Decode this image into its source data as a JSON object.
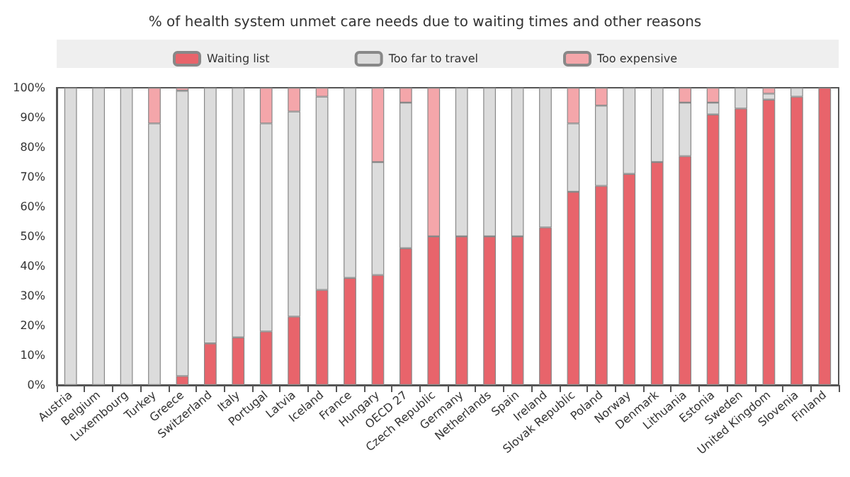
{
  "chart_data": {
    "type": "bar",
    "stacked": true,
    "title": "% of health system unmet care needs due to waiting times and other reasons",
    "categories": [
      "Austria",
      "Belgium",
      "Luxembourg",
      "Turkey",
      "Greece",
      "Switzerland",
      "Italy",
      "Portugal",
      "Latvia",
      "Iceland",
      "France",
      "Hungary",
      "OECD 27",
      "Czech Republic",
      "Germany",
      "Netherlands",
      "Spain",
      "Ireland",
      "Slovak Republic",
      "Poland",
      "Norway",
      "Denmark",
      "Lithuania",
      "Estonia",
      "Sweden",
      "United Kingdom",
      "Slovenia",
      "Finland"
    ],
    "series": [
      {
        "name": "Waiting list",
        "color": "#e8646b",
        "values": [
          0,
          0,
          0,
          0,
          3,
          14,
          16,
          18,
          23,
          32,
          36,
          37,
          46,
          50,
          50,
          50,
          50,
          53,
          65,
          67,
          71,
          75,
          77,
          91,
          93,
          96,
          97,
          100
        ]
      },
      {
        "name": "Too far to travel",
        "color": "#dcdcdc",
        "values": [
          100,
          100,
          100,
          88,
          96,
          86,
          84,
          70,
          69,
          65,
          64,
          38,
          49,
          0,
          50,
          50,
          50,
          47,
          23,
          27,
          29,
          25,
          18,
          4,
          7,
          2,
          3,
          0
        ]
      },
      {
        "name": "Too expensive",
        "color": "#f4a6aa",
        "values": [
          0,
          0,
          0,
          12,
          1,
          0,
          0,
          12,
          8,
          3,
          0,
          25,
          5,
          50,
          0,
          0,
          0,
          0,
          12,
          6,
          0,
          0,
          5,
          5,
          0,
          2,
          0,
          0
        ]
      }
    ],
    "ylim": [
      0,
      100
    ],
    "yticks": [
      {
        "value": 0,
        "label": "0%"
      },
      {
        "value": 10,
        "label": "10%"
      },
      {
        "value": 20,
        "label": "20%"
      },
      {
        "value": 30,
        "label": "30%"
      },
      {
        "value": 40,
        "label": "40%"
      },
      {
        "value": 50,
        "label": "50%"
      },
      {
        "value": 60,
        "label": "60%"
      },
      {
        "value": 70,
        "label": "70%"
      },
      {
        "value": 80,
        "label": "80%"
      },
      {
        "value": 90,
        "label": "90%"
      },
      {
        "value": 100,
        "label": "100%"
      }
    ],
    "legend": "top",
    "grid": false
  }
}
